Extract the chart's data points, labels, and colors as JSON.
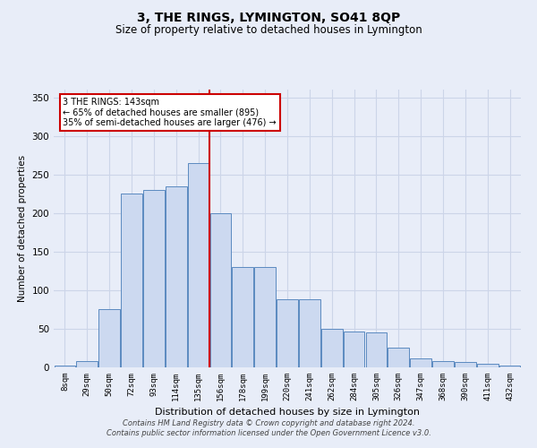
{
  "title": "3, THE RINGS, LYMINGTON, SO41 8QP",
  "subtitle": "Size of property relative to detached houses in Lymington",
  "xlabel": "Distribution of detached houses by size in Lymington",
  "ylabel": "Number of detached properties",
  "categories": [
    "8sqm",
    "29sqm",
    "50sqm",
    "72sqm",
    "93sqm",
    "114sqm",
    "135sqm",
    "156sqm",
    "178sqm",
    "199sqm",
    "220sqm",
    "241sqm",
    "262sqm",
    "284sqm",
    "305sqm",
    "326sqm",
    "347sqm",
    "368sqm",
    "390sqm",
    "411sqm",
    "432sqm"
  ],
  "values": [
    2,
    8,
    75,
    225,
    230,
    235,
    265,
    200,
    130,
    130,
    88,
    88,
    50,
    47,
    45,
    25,
    12,
    8,
    7,
    5,
    2
  ],
  "bar_color": "#ccd9f0",
  "bar_edge_color": "#5b8ac0",
  "vline_x_index": 7,
  "vline_color": "#cc0000",
  "annotation_lines": [
    "3 THE RINGS: 143sqm",
    "← 65% of detached houses are smaller (895)",
    "35% of semi-detached houses are larger (476) →"
  ],
  "annotation_box_color": "#ffffff",
  "annotation_box_edge_color": "#cc0000",
  "ylim": [
    0,
    360
  ],
  "yticks": [
    0,
    50,
    100,
    150,
    200,
    250,
    300,
    350
  ],
  "grid_color": "#ccd5e8",
  "background_color": "#e8edf8",
  "footer_line1": "Contains HM Land Registry data © Crown copyright and database right 2024.",
  "footer_line2": "Contains public sector information licensed under the Open Government Licence v3.0."
}
